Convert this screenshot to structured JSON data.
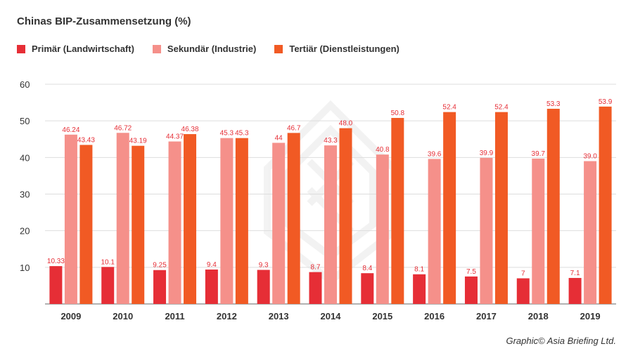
{
  "credit": "Graphic© Asia Briefing Ltd.",
  "colors": {
    "primary": "#e62e36",
    "secondary": "#f5908a",
    "tertiary": "#f15a24",
    "grid": "#dddddd",
    "axis": "#999999",
    "label": "#e62e36",
    "tick": "#333333"
  },
  "chart_data": {
    "type": "bar",
    "title": "Chinas BIP-Zusammensetzung (%)",
    "xlabel": "",
    "ylabel": "",
    "ylim": [
      0,
      60
    ],
    "yticks": [
      10,
      20,
      30,
      40,
      50,
      60
    ],
    "grid": true,
    "legend_position": "top-left",
    "categories": [
      "2009",
      "2010",
      "2011",
      "2012",
      "2013",
      "2014",
      "2015",
      "2016",
      "2017",
      "2018",
      "2019"
    ],
    "series": [
      {
        "name": "Primär (Landwirtschaft)",
        "values": [
          10.33,
          10.1,
          9.25,
          9.4,
          9.3,
          8.7,
          8.4,
          8.1,
          7.5,
          7,
          7.1
        ],
        "labels": [
          "10.33",
          "10.1",
          "9.25",
          "9.4",
          "9.3",
          "8.7",
          "8.4",
          "8.1",
          "7.5",
          "7",
          "7.1"
        ]
      },
      {
        "name": "Sekundär (Industrie)",
        "values": [
          46.24,
          46.72,
          44.37,
          45.3,
          44,
          43.3,
          40.8,
          39.6,
          39.9,
          39.7,
          39.0
        ],
        "labels": [
          "46.24",
          "46.72",
          "44.37",
          "45.3",
          "44",
          "43.3",
          "40.8",
          "39.6",
          "39.9",
          "39.7",
          "39.0"
        ]
      },
      {
        "name": "Tertiär (Dienstleistungen)",
        "values": [
          43.43,
          43.19,
          46.38,
          45.3,
          46.7,
          48.0,
          50.8,
          52.4,
          52.4,
          53.3,
          53.9
        ],
        "labels": [
          "43.43",
          "43.19",
          "46.38",
          "45.3",
          "46.7",
          "48.0",
          "50.8",
          "52.4",
          "52.4",
          "53.3",
          "53.9"
        ]
      }
    ]
  }
}
